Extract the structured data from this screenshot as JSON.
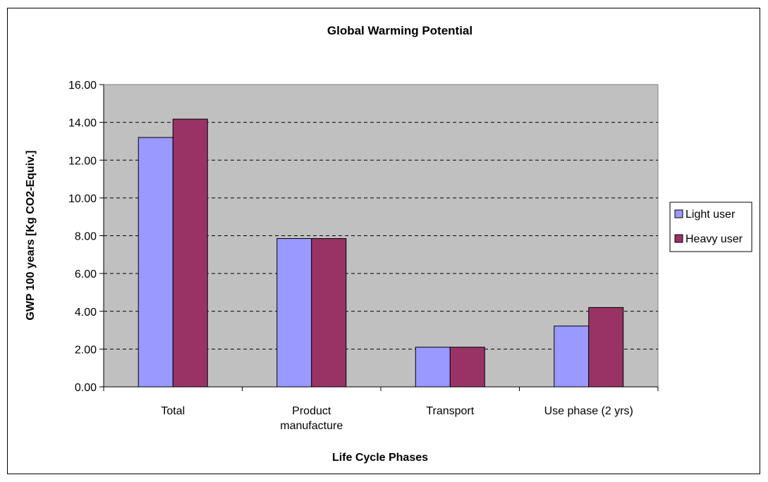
{
  "chart_data": {
    "type": "bar",
    "title": "Global Warming Potential",
    "xlabel": "Life Cycle Phases",
    "ylabel": "GWP 100 years [Kg CO2-Equiv.]",
    "categories": [
      "Total",
      "Product manufacture",
      "Transport",
      "Use phase (2 yrs)"
    ],
    "category_lines": [
      [
        "Total"
      ],
      [
        "Product",
        "manufacture"
      ],
      [
        "Transport"
      ],
      [
        "Use phase (2 yrs)"
      ]
    ],
    "series": [
      {
        "name": "Light user",
        "values": [
          13.2,
          7.85,
          2.1,
          3.22
        ],
        "color": "#9999ff"
      },
      {
        "name": "Heavy user",
        "values": [
          14.17,
          7.85,
          2.1,
          4.2
        ],
        "color": "#993366"
      }
    ],
    "ylim": [
      0,
      16
    ],
    "yticks": [
      "0.00",
      "2.00",
      "4.00",
      "6.00",
      "8.00",
      "10.00",
      "12.00",
      "14.00",
      "16.00"
    ],
    "grid": true,
    "plot_background": "#c0c0c0",
    "legend_position": "right"
  }
}
